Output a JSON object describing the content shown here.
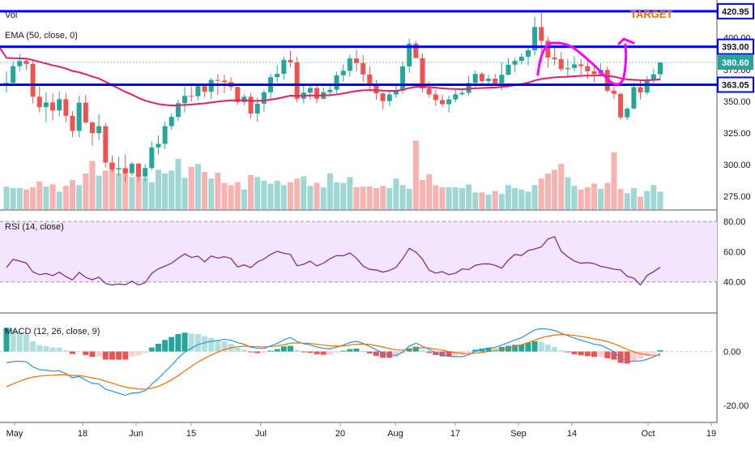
{
  "chart_data": {
    "type": "candlestick",
    "colors": {
      "up": "#26a69a",
      "down": "#ef5350",
      "ema": "#e91e63",
      "level": "#0000ff",
      "rsi": "#7b1fa2",
      "rsi_band": "#f3e5fb",
      "macd": "#2196f3",
      "signal": "#ff6d00",
      "annotation": "#ff00ff",
      "target": "#ef6c00",
      "grid": "#eeeeee",
      "axis_text": "#131722",
      "border": "#555555"
    },
    "main": {
      "labels": {
        "vol": "Vol",
        "ema": "EMA (50, close, 0)",
        "target": "TARGET"
      },
      "y_ticks": [
        "400.00",
        "375.00",
        "350.00",
        "325.00",
        "300.00",
        "275.00"
      ],
      "ylim": [
        270,
        426
      ],
      "levels": [
        {
          "value": 420.95,
          "label": "420.95"
        },
        {
          "value": 393.0,
          "label": "393.00"
        },
        {
          "value": 363.05,
          "label": "363.05"
        }
      ],
      "last_price": {
        "value": 380.6,
        "label": "380.60"
      },
      "candles": [
        [
          362.0,
          373.18,
          356.93,
          364.46
        ],
        [
          364.46,
          381.82,
          363.05,
          377.68
        ],
        [
          377.68,
          387.19,
          373.47,
          381.75
        ],
        [
          381.75,
          383.83,
          374.59,
          379.42
        ],
        [
          379.42,
          383.07,
          348.28,
          353.57
        ],
        [
          353.57,
          361.46,
          341.09,
          345.34
        ],
        [
          345.34,
          356.94,
          333.13,
          349.08
        ],
        [
          349.08,
          356.24,
          334.94,
          342.67
        ],
        [
          342.67,
          357.7,
          338.04,
          351.6
        ],
        [
          351.6,
          356.4,
          333.49,
          338.48
        ],
        [
          338.48,
          342.19,
          321.65,
          326.58
        ],
        [
          326.58,
          354.11,
          321.76,
          348.87
        ],
        [
          348.87,
          354.96,
          331.89,
          333.31
        ],
        [
          333.31,
          334.21,
          314.86,
          324.85
        ],
        [
          324.85,
          340.05,
          319.38,
          330.34
        ],
        [
          330.34,
          333.07,
          297.75,
          301.62
        ],
        [
          301.62,
          307.16,
          294.04,
          296.24
        ],
        [
          296.24,
          306.25,
          291.16,
          297.21
        ],
        [
          297.21,
          308.22,
          286.73,
          293.23
        ],
        [
          293.23,
          302.28,
          291.22,
          300.78
        ],
        [
          300.78,
          301.42,
          286.48,
          290.64
        ],
        [
          290.64,
          300.21,
          286.87,
          297.32
        ],
        [
          297.32,
          318.18,
          295.82,
          313.57
        ],
        [
          313.57,
          322.95,
          308.06,
          316.43
        ],
        [
          316.43,
          333.78,
          312.25,
          330.34
        ],
        [
          330.34,
          340.24,
          327.41,
          337.66
        ],
        [
          337.66,
          351.17,
          334.45,
          348.48
        ],
        [
          348.48,
          361.33,
          341.28,
          354.26
        ],
        [
          354.26,
          361.8,
          349.7,
          353.96
        ],
        [
          353.96,
          364.06,
          350.71,
          361.89
        ],
        [
          361.89,
          364.17,
          353.21,
          357.48
        ],
        [
          357.48,
          368.35,
          351.78,
          366.78
        ],
        [
          366.78,
          371.47,
          355.06,
          366.25
        ],
        [
          366.25,
          370.68,
          356.29,
          365.16
        ],
        [
          365.16,
          368.92,
          358.47,
          361.25
        ],
        [
          361.25,
          361.52,
          347.09,
          349.31
        ],
        [
          349.31,
          355.59,
          346.78,
          353.54
        ],
        [
          353.54,
          356.84,
          336.23,
          340.35
        ],
        [
          340.35,
          352.86,
          333.82,
          348.06
        ],
        [
          348.06,
          359.01,
          341.93,
          357.03
        ],
        [
          357.03,
          371.7,
          350.76,
          368.97
        ],
        [
          368.97,
          378.06,
          364.79,
          371.62
        ],
        [
          371.62,
          385.15,
          366.82,
          382.62
        ],
        [
          382.62,
          390.0,
          376.82,
          380.78
        ],
        [
          380.78,
          384.93,
          349.15,
          351.97
        ],
        [
          351.97,
          363.45,
          348.51,
          356.78
        ],
        [
          356.78,
          362.16,
          351.22,
          360.39
        ],
        [
          360.39,
          362.97,
          348.44,
          351.94
        ],
        [
          351.94,
          360.91,
          351.33,
          357.13
        ],
        [
          357.13,
          364.3,
          353.95,
          359.06
        ],
        [
          359.06,
          373.23,
          356.22,
          370.46
        ],
        [
          370.46,
          379.02,
          365.53,
          374.03
        ],
        [
          374.03,
          386.73,
          369.22,
          383.72
        ],
        [
          383.72,
          390.62,
          373.66,
          380.08
        ],
        [
          380.08,
          386.43,
          365.21,
          371.16
        ],
        [
          371.16,
          377.39,
          357.81,
          363.6
        ],
        [
          363.6,
          366.69,
          351.0,
          356.17
        ],
        [
          356.17,
          356.93,
          343.75,
          350.13
        ],
        [
          350.13,
          358.49,
          346.45,
          355.31
        ],
        [
          355.31,
          363.81,
          352.57,
          358.43
        ],
        [
          358.43,
          380.94,
          355.89,
          377.5
        ],
        [
          377.5,
          399.51,
          372.65,
          395.44
        ],
        [
          395.44,
          397.31,
          383.85,
          384.09
        ],
        [
          384.09,
          387.58,
          356.81,
          360.14
        ],
        [
          360.14,
          365.7,
          352.92,
          355.36
        ],
        [
          355.36,
          359.0,
          346.26,
          350.88
        ],
        [
          350.88,
          355.09,
          345.24,
          347.69
        ],
        [
          347.69,
          354.45,
          341.07,
          351.41
        ],
        [
          351.41,
          359.78,
          349.09,
          355.47
        ],
        [
          355.47,
          359.65,
          354.69,
          356.67
        ],
        [
          356.67,
          370.28,
          354.84,
          364.49
        ],
        [
          364.49,
          374.16,
          361.21,
          371.53
        ],
        [
          371.53,
          373.11,
          362.46,
          365.85
        ],
        [
          365.85,
          370.96,
          363.84,
          367.82
        ],
        [
          367.82,
          371.56,
          362.34,
          364.17
        ],
        [
          364.17,
          380.84,
          358.53,
          370.9
        ],
        [
          370.9,
          384.14,
          370.34,
          378.84
        ],
        [
          378.84,
          384.24,
          372.75,
          381.86
        ],
        [
          381.86,
          387.57,
          378.92,
          385.1
        ],
        [
          385.1,
          393.45,
          378.21,
          390.24
        ],
        [
          390.24,
          416.64,
          386.39,
          408.5
        ],
        [
          408.5,
          420.95,
          380.37,
          397.67
        ],
        [
          397.67,
          400.83,
          376.62,
          384.44
        ],
        [
          384.44,
          393.63,
          378.45,
          383.19
        ],
        [
          383.19,
          388.56,
          373.49,
          375.3
        ],
        [
          375.3,
          383.51,
          368.51,
          376.23
        ],
        [
          376.23,
          385.48,
          373.26,
          379.08
        ],
        [
          379.08,
          383.49,
          370.54,
          377.71
        ],
        [
          377.71,
          383.22,
          367.28,
          373.61
        ],
        [
          373.61,
          378.7,
          365.24,
          371.32
        ],
        [
          371.32,
          379.8,
          369.19,
          374.73
        ],
        [
          374.73,
          377.4,
          357.0,
          358.34
        ],
        [
          358.34,
          361.38,
          351.76,
          355.82
        ],
        [
          355.82,
          356.86,
          335.41,
          337.34
        ],
        [
          337.34,
          345.34,
          335.27,
          344.22
        ],
        [
          344.22,
          364.77,
          343.8,
          361.1
        ],
        [
          361.1,
          367.28,
          351.37,
          356.91
        ],
        [
          356.91,
          369.65,
          354.99,
          367.28
        ],
        [
          367.28,
          375.63,
          364.07,
          371.24
        ],
        [
          371.24,
          380.6,
          366.21,
          380.6
        ]
      ],
      "volume": [
        31,
        29,
        29,
        27,
        30,
        38,
        31,
        34,
        24,
        32,
        40,
        33,
        49,
        66,
        46,
        53,
        64,
        49,
        56,
        44,
        47,
        43,
        37,
        54,
        49,
        53,
        69,
        43,
        58,
        62,
        51,
        42,
        50,
        36,
        33,
        37,
        27,
        47,
        44,
        39,
        35,
        39,
        33,
        37,
        42,
        45,
        32,
        36,
        30,
        49,
        37,
        36,
        44,
        30,
        31,
        31,
        29,
        32,
        29,
        42,
        33,
        28,
        94,
        40,
        48,
        33,
        30,
        30,
        30,
        29,
        34,
        23,
        23,
        20,
        25,
        21,
        33,
        29,
        27,
        24,
        33,
        42,
        49,
        54,
        62,
        44,
        32,
        27,
        30,
        35,
        28,
        36,
        78,
        28,
        22,
        29,
        17,
        25,
        33,
        24
      ]
    },
    "rsi": {
      "label": "RSI (14, close)",
      "y_ticks": [
        "80.00",
        "60.00",
        "40.00"
      ],
      "ylim": [
        20,
        86
      ],
      "band": [
        40,
        80
      ],
      "values": [
        49.6,
        54.9,
        53.8,
        52.5,
        46.6,
        44.8,
        45.6,
        44.2,
        46.5,
        43.5,
        41.3,
        46.3,
        43.0,
        41.5,
        43.2,
        39.0,
        38.0,
        38.7,
        38.1,
        40.5,
        38.0,
        39.5,
        45.7,
        48.7,
        50.5,
        52.4,
        55.7,
        58.6,
        56.2,
        57.1,
        53.3,
        57.2,
        55.8,
        56.7,
        55.5,
        49.9,
        51.3,
        49.5,
        53.2,
        55.2,
        58.2,
        60.3,
        59.0,
        58.2,
        50.7,
        51.7,
        53.8,
        50.6,
        52.4,
        55.4,
        57.5,
        57.3,
        59.2,
        55.7,
        50.5,
        48.3,
        47.9,
        46.5,
        47.6,
        49.7,
        55.4,
        62.2,
        59.7,
        55.0,
        47.8,
        45.8,
        46.8,
        44.8,
        45.8,
        48.6,
        48.2,
        51.0,
        51.9,
        52.0,
        51.0,
        49.1,
        54.5,
        58.2,
        57.5,
        60.8,
        61.8,
        63.2,
        68.4,
        70.0,
        60.3,
        56.7,
        53.8,
        52.4,
        52.8,
        52.1,
        50.3,
        49.5,
        48.4,
        48.0,
        43.7,
        42.5,
        38.0,
        44.3,
        46.8,
        49.7
      ]
    },
    "macd": {
      "label": "MACD (12, 26, close, 9)",
      "y_ticks": [
        "0.00",
        "-20.00"
      ],
      "ylim": [
        -26,
        14
      ],
      "macd": [
        -4.2,
        -3.7,
        -3.6,
        -3.8,
        -5.7,
        -6.7,
        -6.9,
        -7.3,
        -7.1,
        -8.2,
        -9.8,
        -9.2,
        -10.6,
        -11.8,
        -12.0,
        -14.0,
        -14.7,
        -15.5,
        -16.2,
        -15.4,
        -15.3,
        -14.5,
        -12.1,
        -10.0,
        -7.5,
        -5.1,
        -2.4,
        -0.2,
        1.2,
        2.6,
        3.2,
        3.8,
        4.1,
        4.5,
        4.2,
        3.3,
        2.7,
        1.6,
        1.2,
        1.2,
        2.1,
        3.0,
        4.4,
        5.2,
        3.7,
        2.9,
        2.5,
        1.7,
        1.2,
        1.0,
        1.6,
        2.4,
        3.3,
        3.8,
        3.0,
        1.9,
        0.6,
        -0.6,
        -1.2,
        -1.5,
        -0.2,
        2.0,
        3.1,
        2.0,
        0.8,
        -0.4,
        -1.3,
        -1.8,
        -1.9,
        -1.9,
        -1.2,
        0.1,
        0.8,
        1.3,
        1.5,
        2.4,
        3.3,
        4.3,
        5.1,
        6.6,
        8.0,
        8.5,
        8.3,
        7.8,
        6.8,
        5.9,
        5.0,
        4.2,
        3.5,
        2.7,
        2.4,
        1.2,
        -0.1,
        -2.3,
        -3.7,
        -3.6,
        -3.5,
        -2.9,
        -2.0,
        -0.8
      ],
      "signal": [
        -13.0,
        -12.0,
        -11.0,
        -10.1,
        -9.5,
        -9.1,
        -8.9,
        -8.8,
        -8.6,
        -8.6,
        -8.9,
        -8.9,
        -9.3,
        -9.8,
        -10.2,
        -11.0,
        -11.7,
        -12.5,
        -13.2,
        -13.6,
        -13.9,
        -14.0,
        -13.6,
        -12.9,
        -11.8,
        -10.5,
        -8.9,
        -7.2,
        -5.5,
        -3.9,
        -2.5,
        -1.3,
        -0.2,
        0.7,
        1.4,
        1.8,
        2.0,
        1.9,
        1.8,
        1.7,
        1.8,
        2.1,
        2.5,
        3.1,
        3.2,
        3.1,
        3.0,
        2.7,
        2.4,
        2.1,
        2.0,
        2.1,
        2.4,
        2.7,
        2.8,
        2.6,
        2.2,
        1.7,
        1.1,
        0.6,
        0.5,
        0.8,
        1.3,
        1.4,
        1.3,
        0.9,
        0.5,
        0.0,
        -0.4,
        -0.7,
        -0.8,
        -0.6,
        -0.3,
        0.0,
        0.3,
        0.7,
        1.2,
        1.8,
        2.5,
        3.3,
        4.2,
        5.1,
        5.7,
        6.1,
        6.3,
        6.2,
        6.0,
        5.6,
        5.2,
        4.7,
        4.3,
        3.7,
        2.9,
        1.9,
        0.8,
        -0.1,
        -0.8,
        -1.2,
        -1.4,
        -1.3
      ]
    },
    "x_labels": [
      "May",
      "18",
      "Jun",
      "15",
      "Jul",
      "20",
      "Aug",
      "17",
      "Sep",
      "14",
      "Oct",
      "19"
    ],
    "annotation": "upward arrow"
  }
}
